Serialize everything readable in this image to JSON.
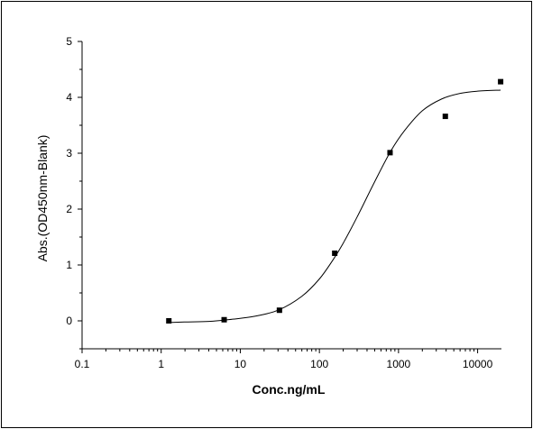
{
  "chart_data": {
    "type": "scatter",
    "x_scale": "log",
    "xlabel": "Conc.ng/mL",
    "ylabel": "Abs.(OD450nm-Blank)",
    "xlim": [
      0.1,
      20000
    ],
    "ylim": [
      -0.5,
      5
    ],
    "x_ticks": [
      0.1,
      1,
      10,
      100,
      1000,
      10000
    ],
    "x_tick_labels": [
      "0.1",
      "1",
      "10",
      "100",
      "1000",
      "10000"
    ],
    "y_ticks": [
      0,
      1,
      2,
      3,
      4,
      5
    ],
    "y_tick_labels": [
      "0",
      "1",
      "2",
      "3",
      "4",
      "5"
    ],
    "grid": false,
    "legend": "none",
    "series": [
      {
        "marker": "square",
        "color": "#000000",
        "points": [
          {
            "x": 1.25,
            "y": 0.0
          },
          {
            "x": 6.25,
            "y": 0.02
          },
          {
            "x": 31.25,
            "y": 0.19
          },
          {
            "x": 156.25,
            "y": 1.21
          },
          {
            "x": 781.25,
            "y": 3.01
          },
          {
            "x": 3906.25,
            "y": 3.66
          },
          {
            "x": 19531.25,
            "y": 4.28
          }
        ]
      },
      {
        "type": "line",
        "color": "#000000",
        "x": [
          1.25,
          2,
          4,
          8,
          15,
          30,
          60,
          100,
          150,
          200,
          300,
          500,
          800,
          1200,
          2000,
          3500,
          6000,
          10000,
          19531
        ],
        "y": [
          -0.03,
          -0.02,
          -0.01,
          0.03,
          0.08,
          0.19,
          0.44,
          0.75,
          1.1,
          1.39,
          1.86,
          2.49,
          3.04,
          3.41,
          3.76,
          3.97,
          4.07,
          4.11,
          4.13
        ]
      }
    ]
  }
}
